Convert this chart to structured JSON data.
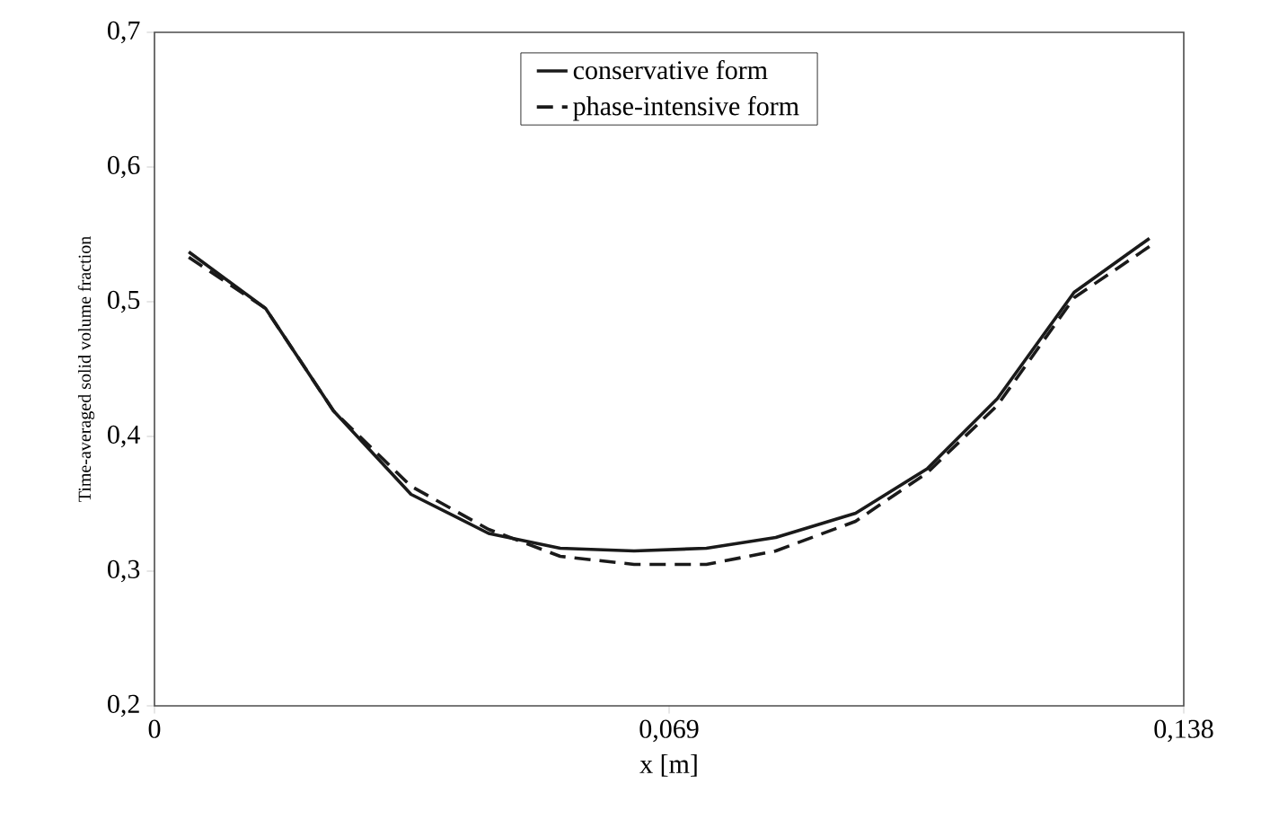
{
  "chart_data": {
    "type": "line",
    "xlabel": "x [m]",
    "ylabel": "Time-averaged solid volume fraction",
    "xlim": [
      0,
      0.138
    ],
    "ylim": [
      0.2,
      0.7
    ],
    "xticks": [
      0,
      {
        "value": 0.069,
        "label": "0,069"
      },
      {
        "value": 0.138,
        "label": "0,138"
      }
    ],
    "yticks": [
      {
        "value": 0.2,
        "label": "0,2"
      },
      {
        "value": 0.3,
        "label": "0,3"
      },
      {
        "value": 0.4,
        "label": "0,4"
      },
      {
        "value": 0.5,
        "label": "0,5"
      },
      {
        "value": 0.6,
        "label": "0,6"
      },
      {
        "value": 0.7,
        "label": "0,7"
      }
    ],
    "x": [
      0.0046,
      0.0149,
      0.024,
      0.0344,
      0.0448,
      0.0544,
      0.0643,
      0.074,
      0.0833,
      0.094,
      0.1036,
      0.113,
      0.1233,
      0.1334
    ],
    "series": [
      {
        "name": "conservative form",
        "color": "#1a1a1a",
        "line_style": "solid",
        "values": [
          0.537,
          0.495,
          0.419,
          0.357,
          0.328,
          0.317,
          0.315,
          0.317,
          0.325,
          0.343,
          0.376,
          0.428,
          0.507,
          0.547
        ]
      },
      {
        "name": "phase-intensive form",
        "color": "#1a1a1a",
        "line_style": "dashed",
        "values": [
          0.533,
          0.495,
          0.419,
          0.363,
          0.331,
          0.311,
          0.305,
          0.305,
          0.315,
          0.337,
          0.373,
          0.423,
          0.503,
          0.541
        ]
      }
    ],
    "legend": "top",
    "grid": false
  }
}
